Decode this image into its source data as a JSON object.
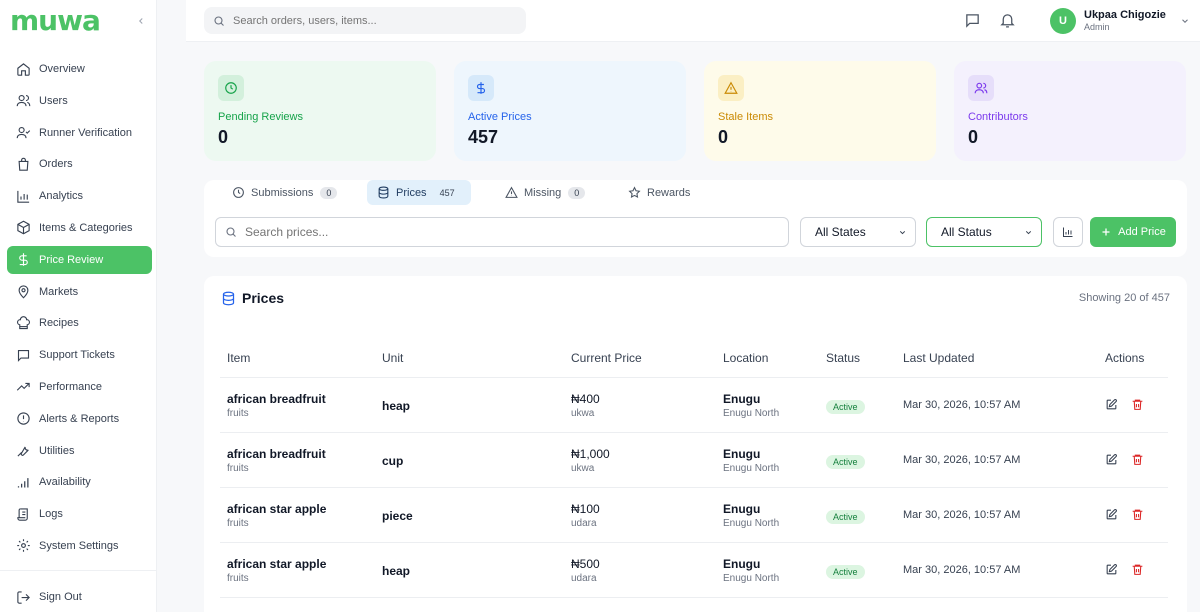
{
  "app": {
    "logo": "muwa"
  },
  "sidebar": {
    "items": [
      {
        "label": "Overview",
        "icon": "home-icon"
      },
      {
        "label": "Users",
        "icon": "users-icon"
      },
      {
        "label": "Runner Verification",
        "icon": "user-check-icon"
      },
      {
        "label": "Orders",
        "icon": "shopping-bag-icon"
      },
      {
        "label": "Analytics",
        "icon": "bar-chart-icon"
      },
      {
        "label": "Items & Categories",
        "icon": "package-icon"
      },
      {
        "label": "Price Review",
        "icon": "dollar-icon",
        "active": true
      },
      {
        "label": "Markets",
        "icon": "map-pin-icon"
      },
      {
        "label": "Recipes",
        "icon": "chef-hat-icon"
      },
      {
        "label": "Support Tickets",
        "icon": "message-square-icon"
      },
      {
        "label": "Performance",
        "icon": "trending-up-icon"
      },
      {
        "label": "Alerts & Reports",
        "icon": "alert-circle-icon"
      },
      {
        "label": "Utilities",
        "icon": "wrench-icon"
      },
      {
        "label": "Availability",
        "icon": "signal-icon"
      },
      {
        "label": "Logs",
        "icon": "scroll-icon"
      },
      {
        "label": "System Settings",
        "icon": "gear-icon"
      }
    ],
    "signout": "Sign Out"
  },
  "header": {
    "search_placeholder": "Search orders, users, items...",
    "user": {
      "initial": "U",
      "name": "Ukpaa Chigozie",
      "role": "Admin"
    }
  },
  "stats": [
    {
      "label": "Pending Reviews",
      "value": "0",
      "bg": "#edf9f1",
      "icon_bg": "#d3f0dc",
      "color": "#16a34a",
      "icon": "clock-icon"
    },
    {
      "label": "Active Prices",
      "value": "457",
      "bg": "#eef6fd",
      "icon_bg": "#d6e9fa",
      "color": "#2563eb",
      "icon": "dollar-icon"
    },
    {
      "label": "Stale Items",
      "value": "0",
      "bg": "#fefbea",
      "icon_bg": "#fbefc4",
      "color": "#ca8a04",
      "icon": "alert-triangle-icon"
    },
    {
      "label": "Contributors",
      "value": "0",
      "bg": "#f4f1fd",
      "icon_bg": "#e6defa",
      "color": "#7c3aed",
      "icon": "users-icon"
    }
  ],
  "tabs": [
    {
      "label": "Submissions",
      "count": "0"
    },
    {
      "label": "Prices",
      "count": "457",
      "active": true
    },
    {
      "label": "Missing",
      "count": "0"
    },
    {
      "label": "Rewards"
    }
  ],
  "filters": {
    "search_placeholder": "Search prices...",
    "state_select": "All States",
    "status_select": "All Status",
    "add_button": "Add Price"
  },
  "table": {
    "title": "Prices",
    "showing": "Showing 20 of 457",
    "columns": [
      "Item",
      "Unit",
      "Current Price",
      "Location",
      "Status",
      "Last Updated",
      "Actions"
    ],
    "rows": [
      {
        "item": "african breadfruit",
        "category": "fruits",
        "unit": "heap",
        "price": "₦400",
        "variant": "ukwa",
        "state": "Enugu",
        "lga": "Enugu North",
        "status": "Active",
        "updated": "Mar 30, 2026, 10:57 AM"
      },
      {
        "item": "african breadfruit",
        "category": "fruits",
        "unit": "cup",
        "price": "₦1,000",
        "variant": "ukwa",
        "state": "Enugu",
        "lga": "Enugu North",
        "status": "Active",
        "updated": "Mar 30, 2026, 10:57 AM"
      },
      {
        "item": "african star apple",
        "category": "fruits",
        "unit": "piece",
        "price": "₦100",
        "variant": "udara",
        "state": "Enugu",
        "lga": "Enugu North",
        "status": "Active",
        "updated": "Mar 30, 2026, 10:57 AM"
      },
      {
        "item": "african star apple",
        "category": "fruits",
        "unit": "heap",
        "price": "₦500",
        "variant": "udara",
        "state": "Enugu",
        "lga": "Enugu North",
        "status": "Active",
        "updated": "Mar 30, 2026, 10:57 AM"
      }
    ]
  }
}
